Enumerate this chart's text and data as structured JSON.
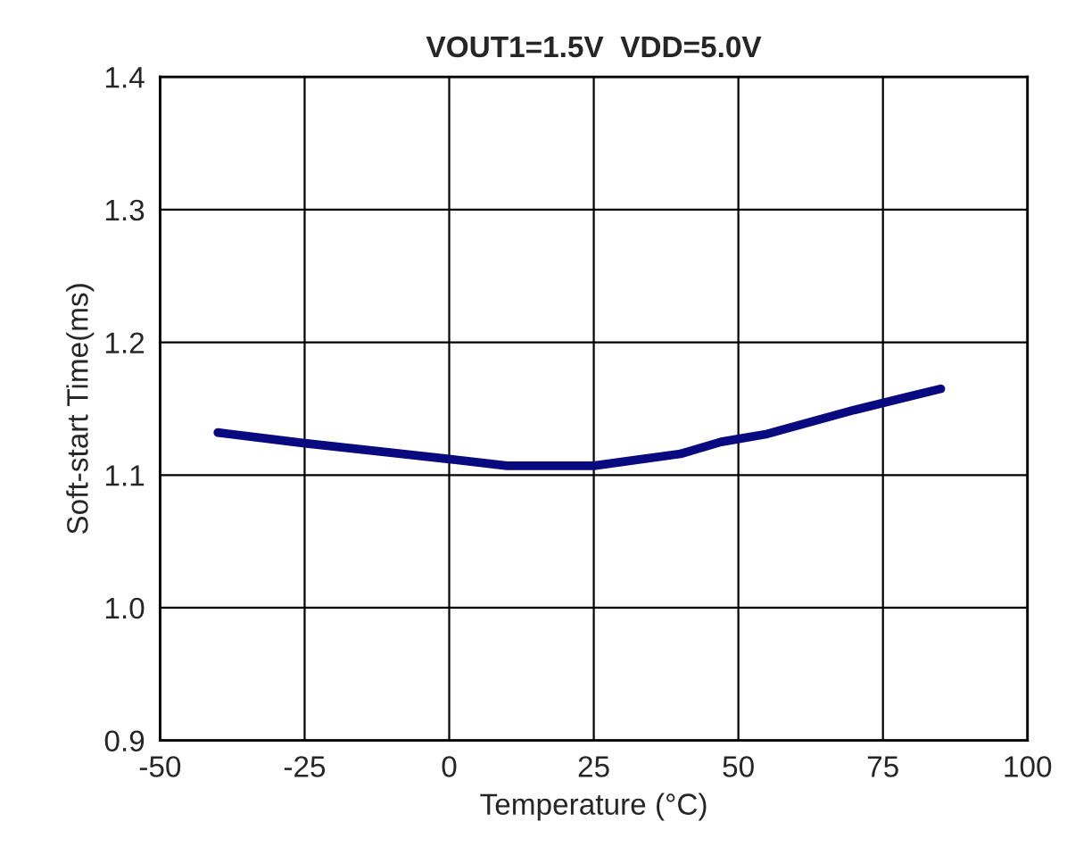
{
  "chart_data": {
    "type": "line",
    "title": "VOUT1=1.5V  VDD=5.0V",
    "xlabel": "Temperature (°C)",
    "ylabel": "Soft-start Time(ms)",
    "series": [
      {
        "color": "#0a0a80",
        "x": [
          -40,
          -25,
          0,
          10,
          25,
          40,
          47,
          55,
          70,
          85
        ],
        "values": [
          1.132,
          1.124,
          1.112,
          1.107,
          1.107,
          1.116,
          1.125,
          1.131,
          1.149,
          1.165
        ]
      }
    ],
    "xlim": [
      -50,
      100
    ],
    "xticks": [
      -50,
      -25,
      0,
      25,
      50,
      75,
      100
    ],
    "ylim": [
      0.9,
      1.4
    ],
    "yticks": [
      0.9,
      {
        "value": 1.0,
        "label": "1.0"
      },
      1.1,
      1.2,
      1.3,
      1.4
    ],
    "grid": true,
    "marker": "none",
    "line_style": "solid"
  }
}
